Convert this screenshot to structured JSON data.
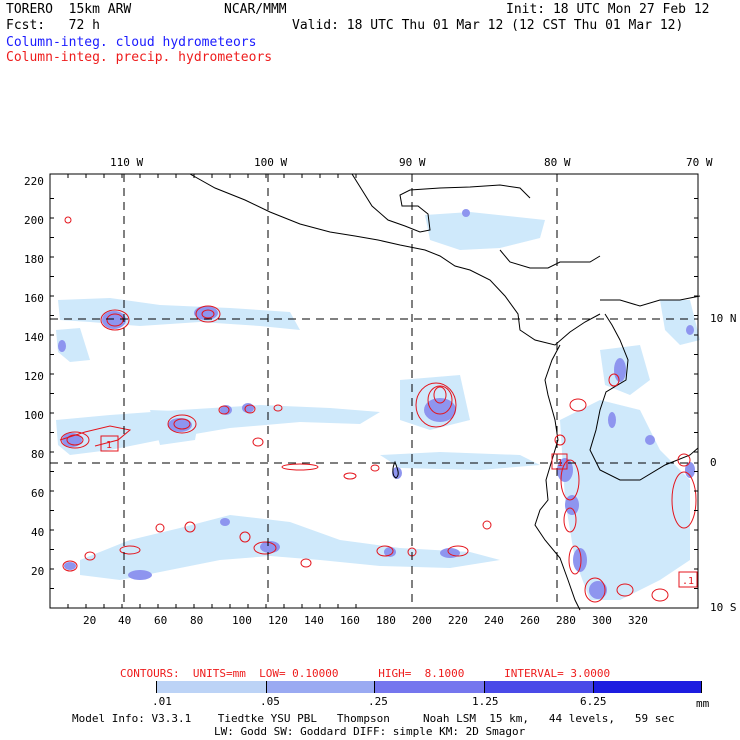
{
  "header": {
    "model": "TORERO  15km ARW",
    "org": "NCAR/MMM",
    "init": "Init: 18 UTC Mon 27 Feb 12",
    "fcst": "Fcst:   72 h",
    "valid": "Valid: 18 UTC Thu 01 Mar 12 (12 CST Thu 01 Mar 12)",
    "legend_cloud": "Column-integ. cloud hydrometeors",
    "legend_precip": "Column-integ. precip. hydrometeors"
  },
  "map": {
    "top_lon_labels": [
      "110 W",
      "100 W",
      "90 W",
      "80 W",
      "70 W"
    ],
    "right_lat_labels": [
      "10 N",
      "0",
      "10 S"
    ],
    "y_ticks": [
      "220",
      "200",
      "180",
      "160",
      "140",
      "120",
      "100",
      "80",
      "60",
      "40",
      "20"
    ],
    "x_ticks": [
      "20",
      "40",
      "60",
      "80",
      "100",
      "120",
      "140",
      "160",
      "180",
      "200",
      "220",
      "240",
      "260",
      "280",
      "300",
      "320"
    ],
    "box_labels": [
      "1",
      "1",
      ".1"
    ]
  },
  "contours": {
    "label": "CONTOURS:  UNITS=mm  LOW= 0.10000      HIGH=  8.1000      INTERVAL= 3.0000"
  },
  "colorbar": {
    "ticks": [
      ".01",
      ".05",
      ".25",
      "1.25",
      "6.25"
    ],
    "unit": "mm",
    "colors": [
      "#ffffff",
      "#d8f4fb",
      "#bcd3f6",
      "#9aaaf2",
      "#7576ee",
      "#4a4ae8",
      "#1d1de0"
    ]
  },
  "footer": {
    "line1": "Model Info: V3.3.1    Tiedtke YSU PBL   Thompson     Noah LSM  15 km,   44 levels,   59 sec",
    "line2": "LW: Godd SW: Goddard DIFF: simple KM: 2D Smagor"
  },
  "colors": {
    "cloud": "#7f86f0",
    "cloud_light": "#cce9fb",
    "precip": "#e4141c",
    "coast": "#000000"
  }
}
